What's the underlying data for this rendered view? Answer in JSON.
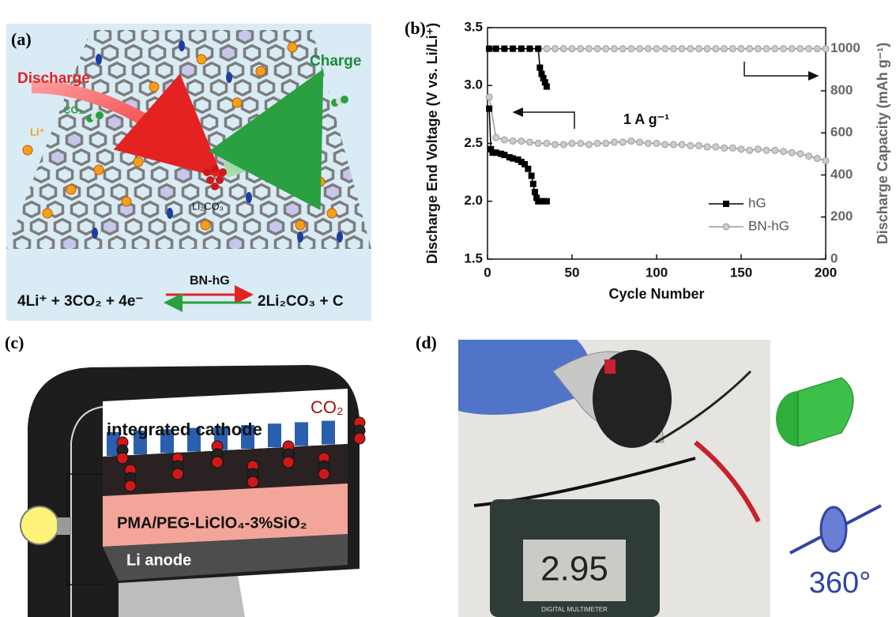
{
  "panel_labels": [
    "(a)",
    "(b)",
    "(c)",
    "(d)"
  ],
  "panel_a": {
    "discharge": "Discharge",
    "charge": "Charge",
    "co2": "CO₂",
    "li_ion": "Li⁺",
    "product": "Li₂CO₃",
    "equation": {
      "left": "4Li⁺ + 3CO₂ + 4e⁻",
      "catalyst": "BN-hG",
      "right": "2Li₂CO₃ + C"
    }
  },
  "panel_c": {
    "cathode": "integrated cathode",
    "co2": "CO₂",
    "electrolyte": "PMA/PEG-LiClO₄-3%SiO₂",
    "anode": "Li anode"
  },
  "panel_d": {
    "display": "2.95",
    "meter_label": "DIGITAL MULTIMETER",
    "rotation": "360°"
  },
  "chart_data": {
    "type": "line",
    "xlabel": "Cycle Number",
    "ylabel": "Discharge End Voltage (V vs. Li/Li⁺)",
    "y2label": "Discharge Capacity (mAh g⁻¹)",
    "annotation": "1 A g⁻¹",
    "xlim": [
      0,
      200
    ],
    "xticks": [
      0,
      50,
      100,
      150,
      200
    ],
    "ylim": [
      1.5,
      3.5
    ],
    "yticks": [
      1.5,
      {
        "value": 2,
        "label": "2.0"
      },
      2.5,
      {
        "value": 3,
        "label": "3.0"
      },
      3.5
    ],
    "y2lim": [
      0,
      1100
    ],
    "y2ticks": [
      0,
      200,
      400,
      600,
      800,
      1000
    ],
    "legend": "lower right",
    "series": [
      {
        "name": "hG",
        "color": "#000000",
        "marker": "square",
        "x": [
          1,
          2,
          3,
          5,
          8,
          10,
          13,
          15,
          18,
          20,
          22,
          24,
          26,
          27,
          28,
          29,
          30,
          31,
          33,
          35
        ],
        "values": [
          2.8,
          2.45,
          2.42,
          2.42,
          2.41,
          2.4,
          2.38,
          2.37,
          2.36,
          2.34,
          2.32,
          2.28,
          2.22,
          2.15,
          2.08,
          2.03,
          2.0,
          2.0,
          2.0,
          2.0
        ]
      },
      {
        "name": "hG",
        "color": "#000000",
        "marker": "square",
        "axis": "y2",
        "x": [
          1,
          5,
          10,
          15,
          20,
          25,
          30,
          31,
          32,
          33,
          34,
          35
        ],
        "values": [
          1000,
          1000,
          1000,
          1000,
          1000,
          1000,
          1000,
          910,
          880,
          860,
          840,
          820
        ]
      },
      {
        "name": "BN-hG",
        "color": "#999999",
        "marker": "circle",
        "x": [
          1,
          5,
          10,
          15,
          20,
          25,
          30,
          35,
          40,
          45,
          50,
          55,
          60,
          65,
          70,
          75,
          80,
          85,
          90,
          95,
          100,
          105,
          110,
          115,
          120,
          125,
          130,
          135,
          140,
          145,
          150,
          155,
          160,
          165,
          170,
          175,
          180,
          185,
          190,
          195,
          200
        ],
        "values": [
          2.9,
          2.55,
          2.53,
          2.52,
          2.52,
          2.51,
          2.5,
          2.5,
          2.49,
          2.49,
          2.5,
          2.5,
          2.49,
          2.5,
          2.5,
          2.51,
          2.51,
          2.52,
          2.51,
          2.5,
          2.5,
          2.49,
          2.49,
          2.49,
          2.48,
          2.48,
          2.47,
          2.47,
          2.46,
          2.46,
          2.45,
          2.44,
          2.45,
          2.44,
          2.44,
          2.43,
          2.42,
          2.41,
          2.39,
          2.37,
          2.35
        ]
      },
      {
        "name": "BN-hG",
        "color": "#999999",
        "marker": "circle",
        "axis": "y2",
        "x": [
          1,
          5,
          10,
          15,
          20,
          25,
          30,
          35,
          40,
          45,
          50,
          55,
          60,
          65,
          70,
          75,
          80,
          85,
          90,
          95,
          100,
          105,
          110,
          115,
          120,
          125,
          130,
          135,
          140,
          145,
          150,
          155,
          160,
          165,
          170,
          175,
          180,
          185,
          190,
          195,
          200
        ],
        "values": [
          1000,
          1000,
          1000,
          1000,
          1000,
          1000,
          1000,
          1000,
          1000,
          1000,
          1000,
          1000,
          1000,
          1000,
          1000,
          1000,
          1000,
          1000,
          1000,
          1000,
          1000,
          1000,
          1000,
          1000,
          1000,
          1000,
          1000,
          1000,
          1000,
          1000,
          1000,
          1000,
          1000,
          1000,
          1000,
          1000,
          1000,
          1000,
          1000,
          1000,
          1000
        ]
      }
    ]
  }
}
